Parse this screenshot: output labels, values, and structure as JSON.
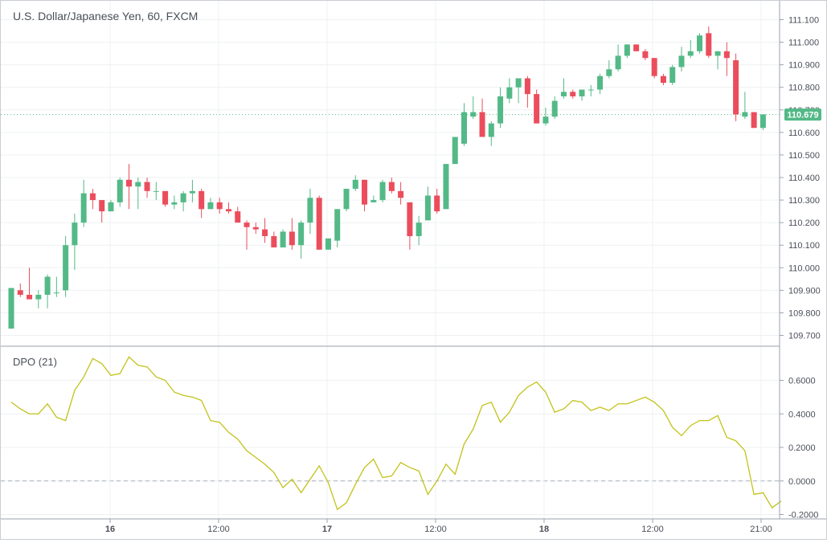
{
  "chart_data": [
    {
      "type": "candlestick",
      "title": "U.S. Dollar/Japanese Yen, 60, FXCM",
      "x_tick_labels": [
        "16",
        "12:00",
        "17",
        "12:00",
        "18",
        "12:00",
        "21:00"
      ],
      "y_ticks": [
        "109.700",
        "109.800",
        "109.900",
        "110.000",
        "110.100",
        "110.200",
        "110.300",
        "110.400",
        "110.500",
        "110.600",
        "110.700",
        "110.800",
        "110.900",
        "111.000",
        "111.100"
      ],
      "ylim": [
        109.65,
        111.15
      ],
      "last_price": "110.679",
      "colors": {
        "up": "#53b987",
        "down": "#eb4d5c",
        "last_price_badge": "#53b987"
      },
      "ohlc": [
        [
          109.73,
          109.91,
          109.73,
          109.91
        ],
        [
          109.9,
          109.93,
          109.87,
          109.88
        ],
        [
          109.88,
          110.0,
          109.86,
          109.86
        ],
        [
          109.86,
          109.9,
          109.82,
          109.88
        ],
        [
          109.88,
          109.97,
          109.82,
          109.96
        ],
        [
          109.89,
          109.96,
          109.87,
          109.89
        ],
        [
          109.9,
          110.14,
          109.87,
          110.1
        ],
        [
          110.1,
          110.24,
          109.99,
          110.2
        ],
        [
          110.2,
          110.39,
          110.18,
          110.33
        ],
        [
          110.33,
          110.35,
          110.26,
          110.3
        ],
        [
          110.3,
          110.3,
          110.2,
          110.25
        ],
        [
          110.25,
          110.3,
          110.25,
          110.29
        ],
        [
          110.29,
          110.4,
          110.27,
          110.39
        ],
        [
          110.39,
          110.46,
          110.26,
          110.36
        ],
        [
          110.36,
          110.4,
          110.26,
          110.38
        ],
        [
          110.38,
          110.4,
          110.31,
          110.34
        ],
        [
          110.34,
          110.38,
          110.3,
          110.34
        ],
        [
          110.34,
          110.34,
          110.27,
          110.28
        ],
        [
          110.28,
          110.32,
          110.26,
          110.29
        ],
        [
          110.29,
          110.34,
          110.25,
          110.33
        ],
        [
          110.33,
          110.39,
          110.29,
          110.34
        ],
        [
          110.34,
          110.35,
          110.22,
          110.26
        ],
        [
          110.26,
          110.31,
          110.26,
          110.29
        ],
        [
          110.29,
          110.31,
          110.24,
          110.26
        ],
        [
          110.26,
          110.29,
          110.24,
          110.25
        ],
        [
          110.25,
          110.27,
          110.2,
          110.2
        ],
        [
          110.2,
          110.21,
          110.08,
          110.18
        ],
        [
          110.18,
          110.2,
          110.15,
          110.17
        ],
        [
          110.17,
          110.22,
          110.11,
          110.14
        ],
        [
          110.14,
          110.16,
          110.09,
          110.09
        ],
        [
          110.09,
          110.17,
          110.09,
          110.16
        ],
        [
          110.16,
          110.22,
          110.08,
          110.1
        ],
        [
          110.1,
          110.21,
          110.04,
          110.2
        ],
        [
          110.2,
          110.35,
          110.15,
          110.31
        ],
        [
          110.31,
          110.32,
          110.08,
          110.08
        ],
        [
          110.08,
          110.13,
          110.08,
          110.13
        ],
        [
          110.12,
          110.26,
          110.09,
          110.26
        ],
        [
          110.26,
          110.35,
          110.25,
          110.35
        ],
        [
          110.35,
          110.41,
          110.34,
          110.39
        ],
        [
          110.39,
          110.39,
          110.25,
          110.28
        ],
        [
          110.29,
          110.32,
          110.29,
          110.3
        ],
        [
          110.3,
          110.39,
          110.29,
          110.38
        ],
        [
          110.38,
          110.4,
          110.33,
          110.34
        ],
        [
          110.34,
          110.38,
          110.28,
          110.31
        ],
        [
          110.29,
          110.29,
          110.08,
          110.14
        ],
        [
          110.14,
          110.23,
          110.1,
          110.2
        ],
        [
          110.21,
          110.36,
          110.21,
          110.32
        ],
        [
          110.32,
          110.35,
          110.24,
          110.25
        ],
        [
          110.26,
          110.46,
          110.26,
          110.46
        ],
        [
          110.46,
          110.58,
          110.46,
          110.58
        ],
        [
          110.55,
          110.73,
          110.54,
          110.69
        ],
        [
          110.67,
          110.76,
          110.66,
          110.69
        ],
        [
          110.69,
          110.75,
          110.58,
          110.58
        ],
        [
          110.58,
          110.65,
          110.54,
          110.64
        ],
        [
          110.64,
          110.8,
          110.62,
          110.76
        ],
        [
          110.75,
          110.84,
          110.73,
          110.8
        ],
        [
          110.8,
          110.84,
          110.73,
          110.84
        ],
        [
          110.84,
          110.85,
          110.71,
          110.77
        ],
        [
          110.77,
          110.79,
          110.64,
          110.64
        ],
        [
          110.64,
          110.71,
          110.63,
          110.67
        ],
        [
          110.67,
          110.76,
          110.66,
          110.74
        ],
        [
          110.76,
          110.84,
          110.75,
          110.78
        ],
        [
          110.78,
          110.79,
          110.75,
          110.76
        ],
        [
          110.76,
          110.79,
          110.74,
          110.79
        ],
        [
          110.79,
          110.81,
          110.76,
          110.79
        ],
        [
          110.79,
          110.86,
          110.77,
          110.85
        ],
        [
          110.85,
          110.92,
          110.84,
          110.88
        ],
        [
          110.88,
          110.99,
          110.87,
          110.94
        ],
        [
          110.94,
          110.99,
          110.93,
          110.99
        ],
        [
          110.99,
          110.99,
          110.96,
          110.96
        ],
        [
          110.96,
          110.97,
          110.92,
          110.93
        ],
        [
          110.93,
          110.93,
          110.84,
          110.85
        ],
        [
          110.85,
          110.86,
          110.81,
          110.82
        ],
        [
          110.82,
          110.9,
          110.81,
          110.89
        ],
        [
          110.89,
          110.98,
          110.87,
          110.94
        ],
        [
          110.94,
          111.01,
          110.93,
          110.96
        ],
        [
          110.96,
          111.04,
          110.95,
          111.03
        ],
        [
          111.04,
          111.07,
          110.93,
          110.94
        ],
        [
          110.94,
          110.95,
          110.88,
          110.96
        ],
        [
          110.96,
          111.0,
          110.85,
          110.93
        ],
        [
          110.92,
          110.95,
          110.65,
          110.68
        ],
        [
          110.67,
          110.78,
          110.66,
          110.69
        ],
        [
          110.69,
          110.69,
          110.62,
          110.62
        ],
        [
          110.62,
          110.68,
          110.61,
          110.68
        ]
      ]
    },
    {
      "type": "line",
      "title": "DPO (21)",
      "y_ticks": [
        "-0.2000",
        "0.0000",
        "0.2000",
        "0.4000",
        "0.6000"
      ],
      "ylim": [
        -0.22,
        0.8
      ],
      "zero_line": true,
      "color": "#c2c21a",
      "values": [
        0.47,
        0.43,
        0.4,
        0.4,
        0.46,
        0.38,
        0.36,
        0.54,
        0.62,
        0.73,
        0.7,
        0.63,
        0.64,
        0.74,
        0.69,
        0.68,
        0.62,
        0.6,
        0.53,
        0.51,
        0.5,
        0.48,
        0.36,
        0.35,
        0.29,
        0.25,
        0.18,
        0.14,
        0.1,
        0.05,
        -0.04,
        0.01,
        -0.07,
        0.01,
        0.09,
        -0.01,
        -0.17,
        -0.13,
        -0.02,
        0.08,
        0.13,
        0.02,
        0.03,
        0.11,
        0.08,
        0.06,
        -0.08,
        0.0,
        0.1,
        0.04,
        0.22,
        0.31,
        0.45,
        0.47,
        0.35,
        0.41,
        0.51,
        0.56,
        0.59,
        0.53,
        0.41,
        0.43,
        0.48,
        0.47,
        0.42,
        0.44,
        0.42,
        0.46,
        0.46,
        0.48,
        0.5,
        0.47,
        0.42,
        0.32,
        0.27,
        0.33,
        0.36,
        0.36,
        0.39,
        0.26,
        0.24,
        0.18,
        -0.08,
        -0.07,
        -0.16,
        -0.12
      ]
    }
  ]
}
